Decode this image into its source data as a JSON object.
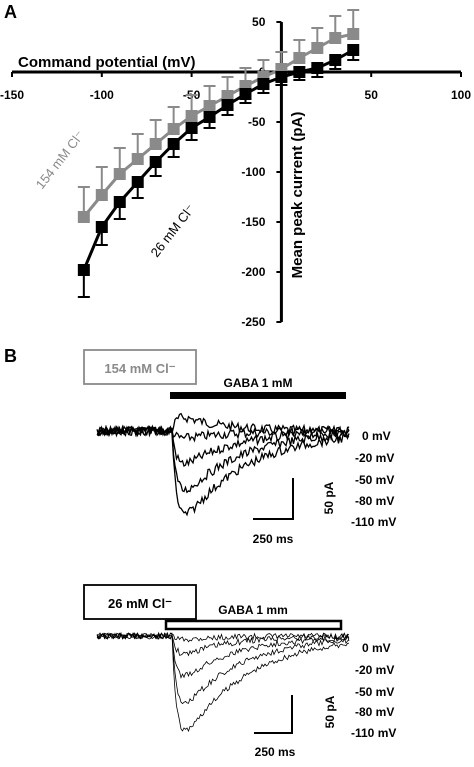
{
  "panel_a_label": "A",
  "panel_b_label": "B",
  "chart_data": {
    "type": "line",
    "title": "",
    "xlabel": "Command potential (mV)",
    "ylabel": "Mean peak current (pA)",
    "xlim": [
      -150,
      100
    ],
    "ylim": [
      -250,
      50
    ],
    "xticks": [
      "-150",
      "-100",
      "-50",
      "0",
      "50",
      "100"
    ],
    "yticks": [
      "50",
      "0",
      "-50",
      "-100",
      "-150",
      "-200",
      "-250"
    ],
    "grid": false,
    "legend": "inline labels",
    "series": [
      {
        "name": "154 mM Cl⁻",
        "color": "#8a8a8a",
        "x": [
          -110,
          -100,
          -90,
          -80,
          -70,
          -60,
          -50,
          -40,
          -30,
          -20,
          -10,
          0,
          10,
          20,
          30,
          40
        ],
        "y": [
          -145,
          -123,
          -102,
          -87,
          -72,
          -57,
          -44,
          -34,
          -24,
          -14,
          -5,
          3,
          14,
          24,
          34,
          38
        ],
        "err": [
          30,
          28,
          26,
          25,
          24,
          22,
          21,
          20,
          19,
          18,
          17,
          17,
          18,
          20,
          22,
          24
        ]
      },
      {
        "name": "26 mM Cl⁻",
        "color": "#000000",
        "x": [
          -110,
          -100,
          -90,
          -80,
          -70,
          -60,
          -50,
          -40,
          -30,
          -20,
          -10,
          0,
          10,
          20,
          30,
          40
        ],
        "y": [
          -198,
          -155,
          -130,
          -110,
          -90,
          -72,
          -56,
          -45,
          -33,
          -22,
          -12,
          -5,
          0,
          4,
          12,
          22
        ],
        "err": [
          27,
          18,
          17,
          16,
          14,
          13,
          12,
          11,
          10,
          9,
          9,
          8,
          8,
          9,
          9,
          10
        ]
      }
    ]
  },
  "panel_b": {
    "traces": [
      {
        "condition": "154 mM Cl⁻",
        "gaba_label": "GABA 1 mM",
        "voltages": [
          "0 mV",
          "-20 mV",
          "-50 mV",
          "-80 mV",
          "-110 mV"
        ],
        "peak_currents_pA": [
          20,
          -10,
          -45,
          -80,
          -110
        ],
        "scale_current": "50 pA",
        "scale_time": "250 ms"
      },
      {
        "condition": "26 mM Cl⁻",
        "gaba_label": "GABA 1 mm",
        "voltages": [
          "0 mV",
          "-20 mV",
          "-50 mV",
          "-80 mV",
          "-110 mV"
        ],
        "peak_currents_pA": [
          -5,
          -25,
          -55,
          -90,
          -125
        ],
        "scale_current": "50 pA",
        "scale_time": "250 ms"
      }
    ]
  }
}
